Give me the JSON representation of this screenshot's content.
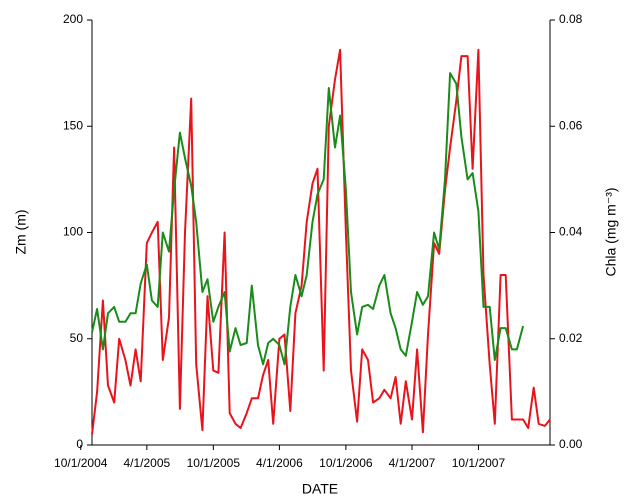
{
  "chart_data": {
    "type": "line",
    "xlabel": "DATE",
    "ylabel": "Zm (m)",
    "y2label": "Chla (mg m⁻³)",
    "x": [
      "2004-11-01",
      "2004-11-15",
      "2004-12-01",
      "2004-12-15",
      "2005-01-01",
      "2005-01-15",
      "2005-02-01",
      "2005-02-15",
      "2005-03-01",
      "2005-03-15",
      "2005-04-01",
      "2005-04-15",
      "2005-05-01",
      "2005-05-15",
      "2005-06-01",
      "2005-06-15",
      "2005-07-01",
      "2005-07-15",
      "2005-08-01",
      "2005-08-15",
      "2005-09-01",
      "2005-09-15",
      "2005-10-01",
      "2005-10-15",
      "2005-11-01",
      "2005-11-15",
      "2005-12-01",
      "2005-12-15",
      "2006-01-01",
      "2006-01-15",
      "2006-02-01",
      "2006-02-15",
      "2006-03-01",
      "2006-03-15",
      "2006-04-01",
      "2006-04-15",
      "2006-05-01",
      "2006-05-15",
      "2006-06-01",
      "2006-06-15",
      "2006-07-01",
      "2006-07-15",
      "2006-08-01",
      "2006-08-15",
      "2006-09-01",
      "2006-09-15",
      "2006-10-01",
      "2006-10-15",
      "2006-11-01",
      "2006-11-15",
      "2006-12-01",
      "2006-12-15",
      "2007-01-01",
      "2007-01-15",
      "2007-02-01",
      "2007-02-15",
      "2007-03-01",
      "2007-03-15",
      "2007-04-01",
      "2007-04-15",
      "2007-05-01",
      "2007-05-15",
      "2007-06-01",
      "2007-06-15",
      "2007-07-01",
      "2007-07-15",
      "2007-08-01",
      "2007-08-15",
      "2007-09-01",
      "2007-09-15",
      "2007-10-01",
      "2007-10-15",
      "2007-11-01",
      "2007-11-15",
      "2007-12-01",
      "2007-12-15",
      "2008-01-01",
      "2008-01-15",
      "2008-02-01",
      "2008-02-15",
      "2008-03-01",
      "2008-03-15",
      "2008-04-01",
      "2008-04-15"
    ],
    "series": [
      {
        "color": "#e8141c",
        "values": [
          5,
          25,
          68,
          28,
          20,
          50,
          40,
          28,
          45,
          30,
          95,
          100,
          105,
          40,
          60,
          140,
          17,
          100,
          163,
          38,
          7,
          70,
          35,
          34,
          100,
          15,
          10,
          8,
          15,
          22,
          22,
          33,
          40,
          10,
          50,
          52,
          16,
          62,
          75,
          105,
          123,
          130,
          35,
          150,
          172,
          186,
          100,
          35,
          11,
          45,
          40,
          20,
          22,
          26,
          22,
          32,
          10,
          30,
          12,
          45,
          6,
          52,
          95,
          90,
          120,
          140,
          162,
          183,
          183,
          130,
          186,
          80,
          38,
          10,
          80,
          80,
          12,
          12,
          12,
          8,
          27,
          10,
          9,
          12
        ]
      },
      {
        "color": "#1a8c1a",
        "axis": "y2",
        "values": [
          0.0212,
          0.0256,
          0.018,
          0.0248,
          0.026,
          0.0232,
          0.0232,
          0.0248,
          0.0248,
          0.0304,
          0.034,
          0.0272,
          0.026,
          0.04,
          0.0364,
          0.048,
          0.0588,
          0.054,
          0.0488,
          0.042,
          0.0288,
          0.0312,
          0.0232,
          0.026,
          0.0288,
          0.0176,
          0.022,
          0.0188,
          0.0192,
          0.03,
          0.0188,
          0.0152,
          0.0192,
          0.02,
          0.0188,
          0.0152,
          0.026,
          0.032,
          0.028,
          0.032,
          0.042,
          0.0472,
          0.05,
          0.0672,
          0.056,
          0.062,
          0.048,
          0.0288,
          0.0208,
          0.026,
          0.0264,
          0.0256,
          0.03,
          0.032,
          0.0248,
          0.022,
          0.018,
          0.0168,
          0.0232,
          0.0288,
          0.0264,
          0.028,
          0.04,
          0.0368,
          0.05,
          0.07,
          0.068,
          0.058,
          0.05,
          0.0512,
          0.044,
          0.026,
          0.026,
          0.016,
          0.022,
          0.022,
          0.018,
          0.018,
          0.0224,
          null,
          null,
          null,
          null,
          null
        ]
      }
    ],
    "xlim": [
      "2004-11-01",
      "2008-04-15"
    ],
    "xticks": [
      {
        "value": "2004-10-01",
        "label": "10/1/2004"
      },
      {
        "value": "2005-04-01",
        "label": "4/1/2005"
      },
      {
        "value": "2005-10-01",
        "label": "10/1/2005"
      },
      {
        "value": "2006-04-01",
        "label": "4/1/2006"
      },
      {
        "value": "2006-10-01",
        "label": "10/1/2006"
      },
      {
        "value": "2007-04-01",
        "label": "4/1/2007"
      },
      {
        "value": "2007-10-01",
        "label": "10/1/2007"
      }
    ],
    "ylim": [
      0,
      200
    ],
    "yticks": [
      0,
      50,
      100,
      150,
      200
    ],
    "y2lim": [
      0,
      0.08
    ],
    "y2ticks": [
      {
        "value": 0,
        "label": "0.00"
      },
      {
        "value": 0.02,
        "label": "0.02"
      },
      {
        "value": 0.04,
        "label": "0.04"
      },
      {
        "value": 0.06,
        "label": "0.06"
      },
      {
        "value": 0.08,
        "label": "0.08"
      }
    ],
    "grid": false
  }
}
